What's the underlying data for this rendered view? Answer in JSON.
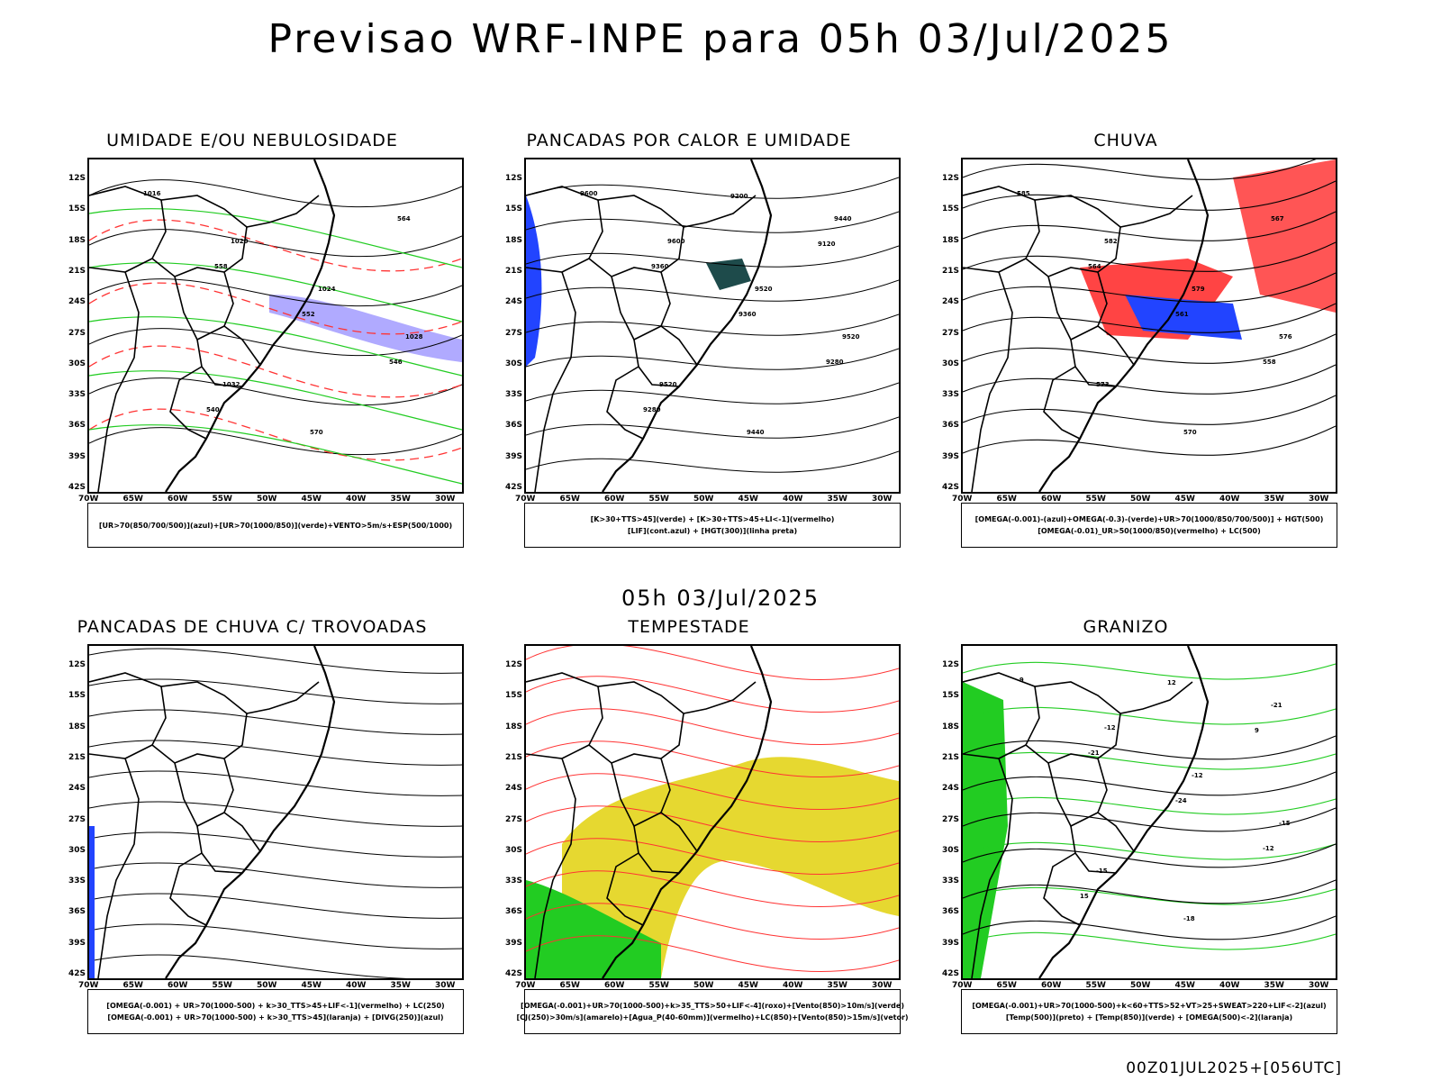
{
  "title": "Previsao WRF-INPE  para 05h 03/Jul/2025",
  "subtitle": "05h 03/Jul/2025",
  "footer": "00Z01JUL2025+[056UTC]",
  "lat_labels": [
    "12S",
    "15S",
    "18S",
    "21S",
    "24S",
    "27S",
    "30S",
    "33S",
    "36S",
    "39S",
    "42S"
  ],
  "lon_labels": [
    "70W",
    "65W",
    "60W",
    "55W",
    "50W",
    "45W",
    "40W",
    "35W",
    "30W"
  ],
  "colors": {
    "contour_red": "#ff3333",
    "contour_green": "#22cc22",
    "purple": "#b0aaff",
    "blue": "#2244ff",
    "yellow": "#e6d830",
    "dark_teal": "#1e4b4b",
    "orange": "#ff8800"
  },
  "panels": [
    {
      "title": "UMIDADE E/OU NEBULOSIDADE",
      "legend": [
        "[UR>70(850/700/500)](azul)+[UR>70(1000/850)](verde)+VENTO>5m/s+ESP(500/1000)"
      ],
      "contour_labels": [
        "1016",
        "1020",
        "1024",
        "1028",
        "1032",
        "570",
        "564",
        "558",
        "552",
        "546",
        "540"
      ]
    },
    {
      "title": "PANCADAS POR CALOR E UMIDADE",
      "legend": [
        "[K>30+TTS>45](verde) + [K>30+TTS>45+LI<-1](vermelho)",
        "[LIF](cont.azul) + [HGT(300)](linha preta)"
      ],
      "contour_labels": [
        "9600",
        "9600",
        "9520",
        "9520",
        "9520",
        "9440",
        "9440",
        "9360",
        "9360",
        "9280",
        "9280",
        "9200",
        "9120"
      ]
    },
    {
      "title": "CHUVA",
      "legend": [
        "[OMEGA(-0.001)-(azul)+OMEGA(-0.3)-(verde)+UR>70(1000/850/700/500)] + HGT(500)",
        "[OMEGA(-0.01)_UR>50(1000/850)(vermelho) + LC(500)"
      ],
      "contour_labels": [
        "585",
        "582",
        "579",
        "576",
        "573",
        "570",
        "567",
        "564",
        "561",
        "558"
      ]
    },
    {
      "title": "PANCADAS DE CHUVA C/ TROVOADAS",
      "legend": [
        "[OMEGA(-0.001) + UR>70(1000-500) + k>30_TTS>45+LIF<-1](vermelho) + LC(250)",
        "[OMEGA(-0.001) + UR>70(1000-500) + k>30_TTS>45](laranja) + [DIVG(250)](azul)"
      ],
      "contour_labels": []
    },
    {
      "title": "TEMPESTADE",
      "legend": [
        "[OMEGA(-0.001)+UR>70(1000-500)+k>35_TTS>50+LIF<-4](roxo)+[Vento(850)>10m/s](verde)",
        "[CJ(250)>30m/s](amarelo)+[Agua_P(40-60mm)](vermelho)+LC(850)+[Vento(850)>15m/s](vetor)"
      ],
      "contour_labels": []
    },
    {
      "title": "GRANIZO",
      "legend": [
        "[OMEGA(-0.001)+UR>70(1000-500)+k<60+TTS>52+VT>25+SWEAT>220+LIF<-2](azul)",
        "[Temp(500)](preto) + [Temp(850)](verde) + [OMEGA(500)<-2](laranja)"
      ],
      "contour_labels": [
        "-9",
        "-12",
        "-12",
        "-15",
        "-15",
        "-18",
        "-21",
        "-21",
        "-24",
        "-12",
        "15",
        "12",
        "9"
      ]
    }
  ]
}
